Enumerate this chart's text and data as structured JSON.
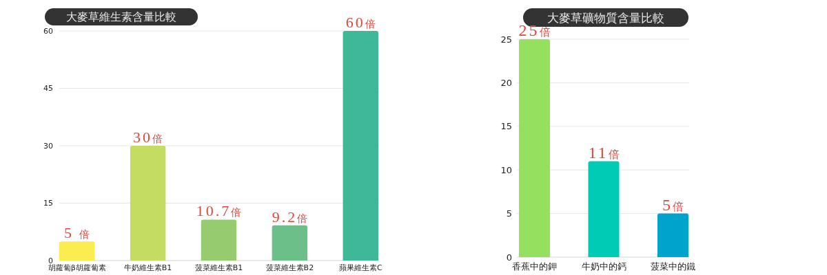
{
  "chart_data": [
    {
      "type": "bar",
      "title": "大麥草維生素含量比較",
      "categories": [
        "胡蘿蔔β胡蘿蔔素",
        "牛奶維生素B1",
        "菠菜維生素B1",
        "菠菜維生素B2",
        "蘋果維生素C"
      ],
      "values": [
        5,
        30,
        10.7,
        9.2,
        60
      ],
      "colors": [
        "#fbec4f",
        "#c5dc62",
        "#96cb70",
        "#6cbf88",
        "#3fb898"
      ],
      "ylim": [
        0,
        60
      ],
      "yticks": [
        0,
        15,
        30,
        45,
        60
      ],
      "grid": "y",
      "value_labels": [
        "5 倍",
        "30倍",
        "10.7倍",
        "9.2倍",
        "60倍"
      ]
    },
    {
      "type": "bar",
      "title": "大麥草礦物質含量比較",
      "categories": [
        "香蕉中的鉀",
        "牛奶中的鈣",
        "菠菜中的鐵"
      ],
      "values": [
        25,
        11,
        5
      ],
      "colors": [
        "#95e05e",
        "#00cbb5",
        "#00a3cc"
      ],
      "ylim": [
        0,
        25
      ],
      "yticks": [
        0,
        5,
        10,
        15,
        20,
        25
      ],
      "grid": "y",
      "value_labels": [
        "25倍",
        "11倍",
        "5倍"
      ]
    }
  ]
}
